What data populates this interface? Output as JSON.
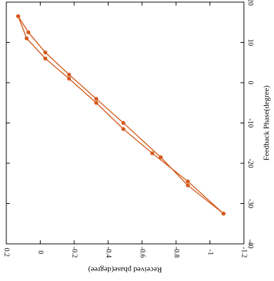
{
  "chart_data": {
    "type": "line",
    "orientation": "rotated-90-clockwise",
    "title": "",
    "xlabel": "Feedback Phase(degree)",
    "ylabel": "Received phase(degree)",
    "xlim": [
      -40,
      20
    ],
    "ylim": [
      -1.2,
      0.2
    ],
    "x_ticks": [
      -40,
      -30,
      -20,
      -10,
      0,
      10,
      20
    ],
    "x_tick_labels": [
      "-40",
      "-30",
      "-20",
      "-10",
      "0",
      "10",
      "20"
    ],
    "y_ticks": [
      -1.2,
      -1.0,
      -0.8,
      -0.6,
      -0.4,
      -0.2,
      0,
      0.2
    ],
    "y_tick_labels": [
      "-1.2",
      "-1",
      "-0.8",
      "-0.6",
      "-0.4",
      "-0.2",
      "0",
      "0.2"
    ],
    "grid": false,
    "color": "#d35a1c",
    "series": [
      {
        "x": [
          16.5,
          11,
          6,
          1,
          -5,
          -11.5,
          -17.5,
          -24.5,
          -32.5
        ],
        "y": [
          0.13,
          0.08,
          -0.03,
          -0.17,
          -0.33,
          -0.49,
          -0.66,
          -0.87,
          -1.08
        ]
      },
      {
        "x": [
          16.5,
          12.5,
          7.5,
          2,
          -4,
          -10,
          -18.5,
          -25.5,
          -32.5
        ],
        "y": [
          0.13,
          0.07,
          -0.03,
          -0.17,
          -0.33,
          -0.49,
          -0.71,
          -0.87,
          -1.08
        ]
      }
    ]
  }
}
